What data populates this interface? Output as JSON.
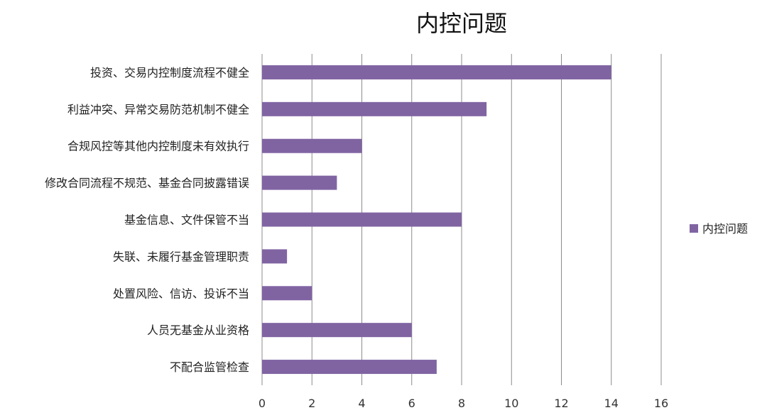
{
  "chart_data": {
    "type": "bar",
    "orientation": "horizontal",
    "title": "内控问题",
    "xlabel": "",
    "ylabel": "",
    "categories": [
      "投资、交易内控制度流程不健全",
      "利益冲突、异常交易防范机制不健全",
      "合规风控等其他内控制度未有效执行",
      "修改合同流程不规范、基金合同披露错误",
      "基金信息、文件保管不当",
      "失联、未履行基金管理职责",
      "处置风险、信访、投诉不当",
      "人员无基金从业资格",
      "不配合监管检查"
    ],
    "series": [
      {
        "name": "内控问题",
        "values": [
          14,
          9,
          4,
          3,
          8,
          1,
          2,
          6,
          7
        ],
        "color": "#8064a2"
      }
    ],
    "xlim": [
      0,
      16
    ],
    "xticks": [
      0,
      2,
      4,
      6,
      8,
      10,
      12,
      14,
      16
    ],
    "grid": "vertical",
    "legend_position": "right"
  }
}
